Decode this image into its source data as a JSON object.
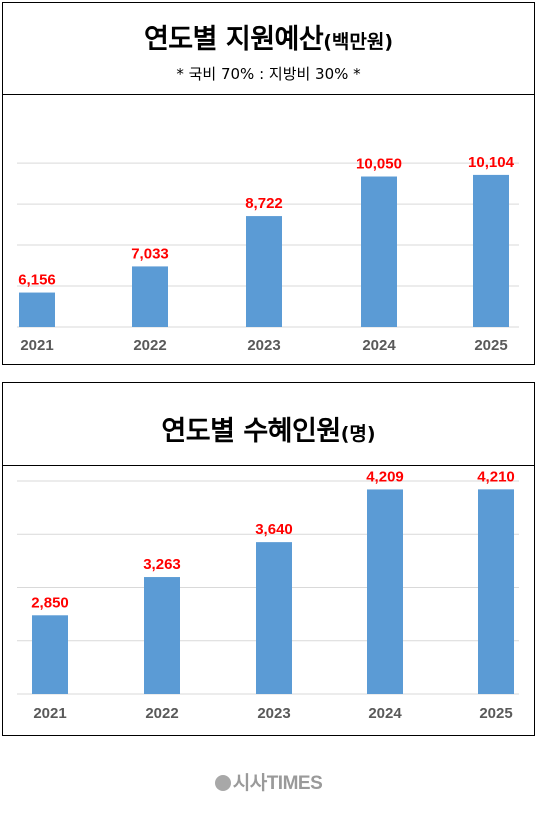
{
  "panels": [
    {
      "title": "연도별 지원예산",
      "unit": "(백만원)",
      "note": "* 국비 70% : 지방비 30% *"
    },
    {
      "title": "연도별 수혜인원",
      "unit": "(명)",
      "note": ""
    }
  ],
  "watermark": "시사TIMES",
  "chart_data": [
    {
      "type": "bar",
      "categories": [
        "2021",
        "2022",
        "2023",
        "2024",
        "2025"
      ],
      "values": [
        6156,
        7033,
        8722,
        10050,
        10104
      ],
      "value_labels": [
        "6,156",
        "7,033",
        "8,722",
        "10,050",
        "10,104"
      ],
      "title": "연도별 지원예산(백만원)",
      "xlabel": "",
      "ylabel": "",
      "ylim": [
        5000,
        10500
      ],
      "grid": true,
      "bar_color": "#5B9BD5",
      "label_color": "#FF0000"
    },
    {
      "type": "bar",
      "categories": [
        "2021",
        "2022",
        "2023",
        "2024",
        "2025"
      ],
      "values": [
        2850,
        3263,
        3640,
        4209,
        4210
      ],
      "value_labels": [
        "2,850",
        "3,263",
        "3,640",
        "4,209",
        "4,210"
      ],
      "title": "연도별 수혜인원(명)",
      "xlabel": "",
      "ylabel": "",
      "ylim": [
        2000,
        4300
      ],
      "grid": true,
      "bar_color": "#5B9BD5",
      "label_color": "#FF0000"
    }
  ]
}
